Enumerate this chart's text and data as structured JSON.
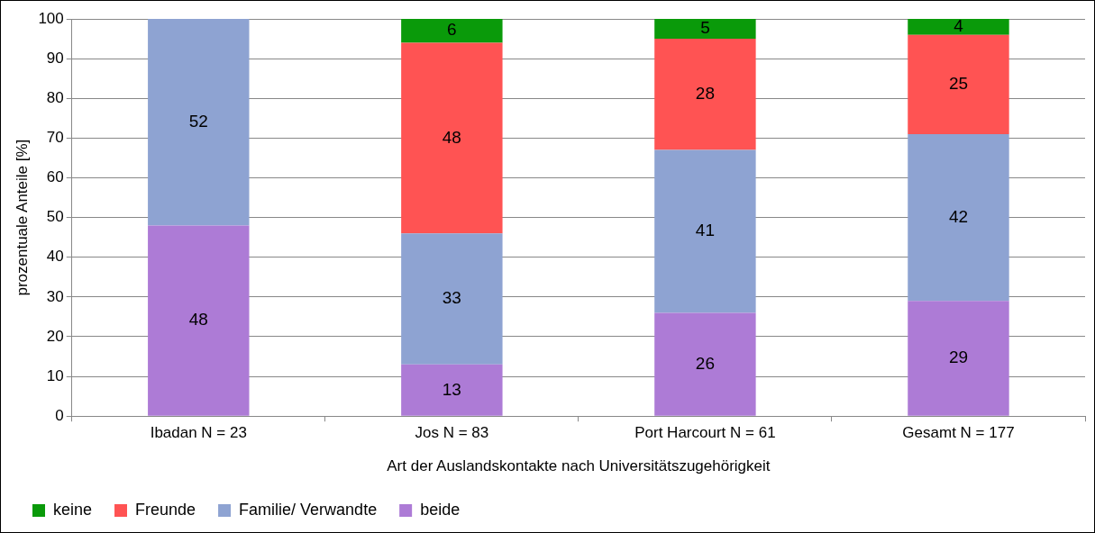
{
  "chart_data": {
    "type": "bar",
    "stacked": true,
    "xlabel": "Art der Auslandskontakte nach Universitätszugehörigkeit",
    "ylabel": "prozentuale Anteile [%]",
    "categories": [
      "Ibadan N = 23",
      "Jos N = 83",
      "Port Harcourt N = 61",
      "Gesamt N = 177"
    ],
    "series": [
      {
        "name": "beide",
        "color": "#ad7bd6",
        "values": [
          48,
          13,
          26,
          29
        ]
      },
      {
        "name": "Familie/ Verwandte",
        "color": "#8ea3d2",
        "values": [
          52,
          33,
          41,
          42
        ]
      },
      {
        "name": "Freunde",
        "color": "#ff5353",
        "values": [
          null,
          48,
          28,
          25
        ]
      },
      {
        "name": "keine",
        "color": "#0a9a0a",
        "values": [
          null,
          6,
          5,
          4
        ]
      }
    ],
    "ylim": [
      0,
      100
    ],
    "yticks": [
      0,
      10,
      20,
      30,
      40,
      50,
      60,
      70,
      80,
      90,
      100
    ],
    "grid": "y",
    "legend": "bottom",
    "data_labels": true
  }
}
